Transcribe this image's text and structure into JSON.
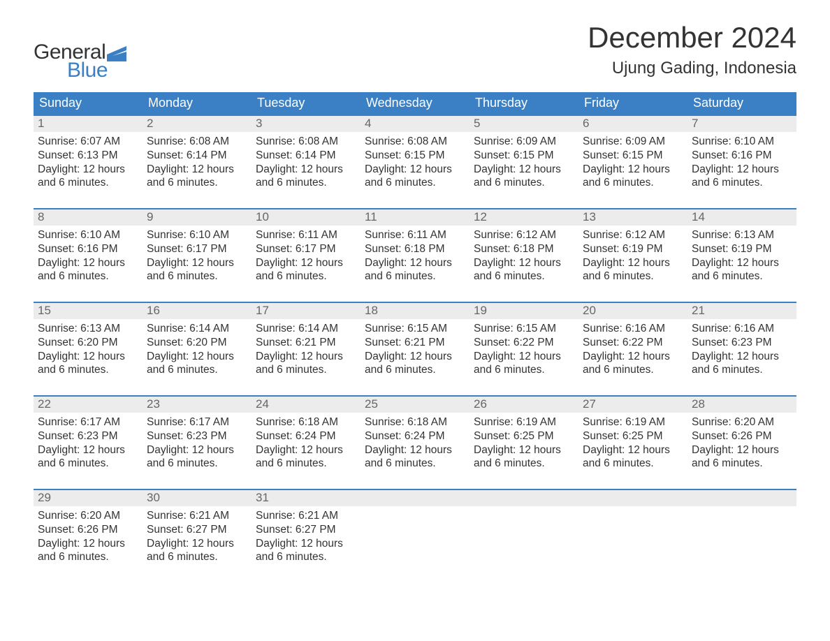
{
  "logo": {
    "text1": "General",
    "text2": "Blue",
    "text1_color": "#333333",
    "text2_color": "#3b7fc4",
    "icon_color": "#3b7fc4"
  },
  "title": "December 2024",
  "location": "Ujung Gading, Indonesia",
  "colors": {
    "header_bg": "#3b7fc4",
    "header_text": "#ffffff",
    "daynum_bg": "#ececec",
    "daynum_text": "#666666",
    "body_text": "#333333",
    "week_border": "#3b7fc4",
    "page_bg": "#ffffff"
  },
  "typography": {
    "title_fontsize": 42,
    "location_fontsize": 24,
    "dayheader_fontsize": 18,
    "daynum_fontsize": 17,
    "body_fontsize": 15.5,
    "font_family": "Arial"
  },
  "layout": {
    "columns": 7,
    "rows": 5,
    "cell_min_height": 118
  },
  "day_headers": [
    "Sunday",
    "Monday",
    "Tuesday",
    "Wednesday",
    "Thursday",
    "Friday",
    "Saturday"
  ],
  "labels": {
    "sunrise_prefix": "Sunrise: ",
    "sunset_prefix": "Sunset: ",
    "daylight_prefix": "Daylight: ",
    "daylight_suffix_line2": "and 6 minutes."
  },
  "daylight_common": "12 hours",
  "days": [
    {
      "n": 1,
      "sunrise": "6:07 AM",
      "sunset": "6:13 PM"
    },
    {
      "n": 2,
      "sunrise": "6:08 AM",
      "sunset": "6:14 PM"
    },
    {
      "n": 3,
      "sunrise": "6:08 AM",
      "sunset": "6:14 PM"
    },
    {
      "n": 4,
      "sunrise": "6:08 AM",
      "sunset": "6:15 PM"
    },
    {
      "n": 5,
      "sunrise": "6:09 AM",
      "sunset": "6:15 PM"
    },
    {
      "n": 6,
      "sunrise": "6:09 AM",
      "sunset": "6:15 PM"
    },
    {
      "n": 7,
      "sunrise": "6:10 AM",
      "sunset": "6:16 PM"
    },
    {
      "n": 8,
      "sunrise": "6:10 AM",
      "sunset": "6:16 PM"
    },
    {
      "n": 9,
      "sunrise": "6:10 AM",
      "sunset": "6:17 PM"
    },
    {
      "n": 10,
      "sunrise": "6:11 AM",
      "sunset": "6:17 PM"
    },
    {
      "n": 11,
      "sunrise": "6:11 AM",
      "sunset": "6:18 PM"
    },
    {
      "n": 12,
      "sunrise": "6:12 AM",
      "sunset": "6:18 PM"
    },
    {
      "n": 13,
      "sunrise": "6:12 AM",
      "sunset": "6:19 PM"
    },
    {
      "n": 14,
      "sunrise": "6:13 AM",
      "sunset": "6:19 PM"
    },
    {
      "n": 15,
      "sunrise": "6:13 AM",
      "sunset": "6:20 PM"
    },
    {
      "n": 16,
      "sunrise": "6:14 AM",
      "sunset": "6:20 PM"
    },
    {
      "n": 17,
      "sunrise": "6:14 AM",
      "sunset": "6:21 PM"
    },
    {
      "n": 18,
      "sunrise": "6:15 AM",
      "sunset": "6:21 PM"
    },
    {
      "n": 19,
      "sunrise": "6:15 AM",
      "sunset": "6:22 PM"
    },
    {
      "n": 20,
      "sunrise": "6:16 AM",
      "sunset": "6:22 PM"
    },
    {
      "n": 21,
      "sunrise": "6:16 AM",
      "sunset": "6:23 PM"
    },
    {
      "n": 22,
      "sunrise": "6:17 AM",
      "sunset": "6:23 PM"
    },
    {
      "n": 23,
      "sunrise": "6:17 AM",
      "sunset": "6:23 PM"
    },
    {
      "n": 24,
      "sunrise": "6:18 AM",
      "sunset": "6:24 PM"
    },
    {
      "n": 25,
      "sunrise": "6:18 AM",
      "sunset": "6:24 PM"
    },
    {
      "n": 26,
      "sunrise": "6:19 AM",
      "sunset": "6:25 PM"
    },
    {
      "n": 27,
      "sunrise": "6:19 AM",
      "sunset": "6:25 PM"
    },
    {
      "n": 28,
      "sunrise": "6:20 AM",
      "sunset": "6:26 PM"
    },
    {
      "n": 29,
      "sunrise": "6:20 AM",
      "sunset": "6:26 PM"
    },
    {
      "n": 30,
      "sunrise": "6:21 AM",
      "sunset": "6:27 PM"
    },
    {
      "n": 31,
      "sunrise": "6:21 AM",
      "sunset": "6:27 PM"
    }
  ],
  "first_day_column": 0,
  "total_cells": 35
}
